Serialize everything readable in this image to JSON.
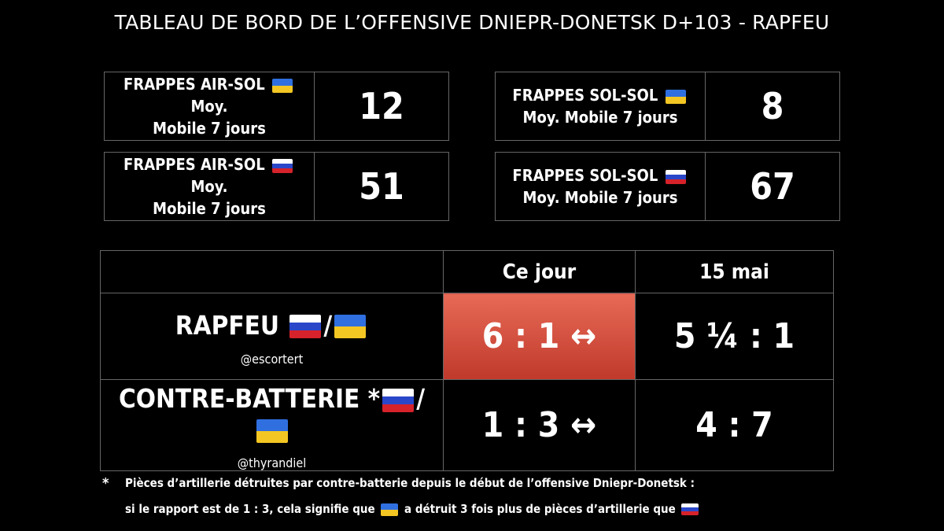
{
  "title": "TABLEAU DE BORD DE L’OFFENSIVE DNIEPR-DONETSK D+103 - RAPFEU",
  "stats": {
    "air_ua": {
      "label_a": "FRAPPES AIR-SOL",
      "label_b": "Moy.",
      "label_c": "Mobile 7 jours",
      "value": "12"
    },
    "sol_ua": {
      "label_a": "FRAPPES SOL-SOL",
      "label_c": "Moy. Mobile 7 jours",
      "value": "8"
    },
    "air_ru": {
      "label_a": "FRAPPES AIR-SOL",
      "label_b": "Moy.",
      "label_c": "Mobile 7 jours",
      "value": "51"
    },
    "sol_ru": {
      "label_a": "FRAPPES SOL-SOL",
      "label_c": "Moy. Mobile 7 jours",
      "value": "67"
    }
  },
  "ratio_table": {
    "col_today": "Ce jour",
    "col_date": "15 mai",
    "rapfeu": {
      "label": "RAPFEU",
      "slash": "/",
      "handle": "@escortert",
      "today": "6 : 1 ↔",
      "date": "5 ¼  : 1"
    },
    "cb": {
      "label": "CONTRE-BATTERIE *",
      "slash": "/",
      "handle": "@thyrandiel",
      "today": "1 : 3  ↔",
      "date": "4 : 7"
    }
  },
  "footnote": {
    "star": "*",
    "line1": "Pièces d’artillerie détruites par contre-batterie depuis le début de l’offensive Dniepr-Donetsk :",
    "line2_a": "si le rapport est de 1 : 3, cela signifie que",
    "line2_b": "a détruit 3 fois plus de pièces d’artillerie que"
  },
  "colors": {
    "ua_blue": "#2f6fe0",
    "ua_yellow": "#f3c623",
    "ru_white": "#ffffff",
    "ru_blue": "#2a47c9",
    "ru_red": "#d6222a",
    "highlight_red": "#d9503f"
  },
  "icons": [
    "flag-ukraine-icon",
    "flag-russia-icon",
    "arrow-left-right-icon"
  ]
}
